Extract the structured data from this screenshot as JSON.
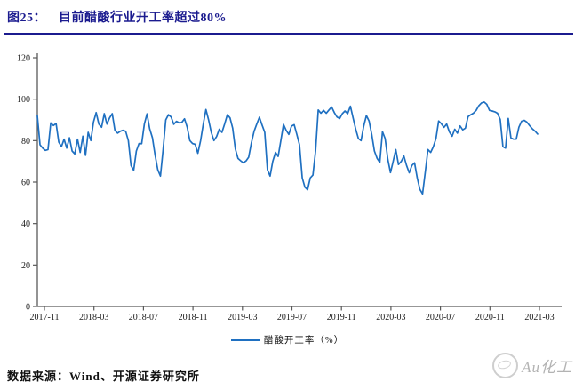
{
  "header": {
    "figure_label": "图25：",
    "title": "目前醋酸行业开工率超过80%"
  },
  "chart_data": {
    "type": "line",
    "title": "醋酸行业开工率",
    "xlabel": "",
    "ylabel": "",
    "ylim": [
      0,
      120
    ],
    "grid": false,
    "legend_position": "bottom",
    "x_tick_labels": [
      "2017-11",
      "2018-03",
      "2018-07",
      "2018-11",
      "2019-03",
      "2019-07",
      "2019-11",
      "2020-03",
      "2020-07",
      "2020-11",
      "2021-03"
    ],
    "y_ticks": [
      0,
      20,
      40,
      60,
      80,
      100,
      120
    ],
    "series": [
      {
        "name": "醋酸开工率（%）",
        "color": "#1F70C1",
        "values": [
          92,
          78,
          76.4,
          75.3,
          75.7,
          88.6,
          87.3,
          88.3,
          79.3,
          77.1,
          80.7,
          76.4,
          81.4,
          75,
          73.6,
          80.7,
          74.3,
          82.1,
          72.9,
          84,
          80,
          89,
          93.5,
          88,
          86.5,
          93,
          88,
          91,
          93,
          85,
          83.6,
          84.5,
          85,
          84.5,
          80,
          68,
          65.7,
          75,
          78.6,
          78.5,
          88,
          92.9,
          85.7,
          81.4,
          73,
          66,
          62.9,
          75.7,
          90,
          92.5,
          91.4,
          87.9,
          89.3,
          88.6,
          88.8,
          90.5,
          86.5,
          80,
          78.6,
          78.2,
          73.9,
          80,
          88,
          95,
          90,
          84,
          80,
          82,
          85.5,
          84,
          88,
          92.5,
          91,
          86,
          76,
          71.4,
          70.3,
          69.3,
          70.2,
          72,
          79,
          84.5,
          88,
          91.3,
          87.5,
          84,
          66,
          62.9,
          70,
          74.3,
          72.4,
          80,
          87.8,
          85,
          83,
          87,
          87.7,
          83,
          78,
          62,
          57.5,
          56.3,
          62,
          63.4,
          75,
          94.8,
          93.2,
          94.6,
          93.2,
          94.8,
          96.2,
          93.5,
          91.4,
          90.7,
          93,
          94.3,
          93,
          96.6,
          91,
          85.5,
          81,
          80,
          87,
          92.1,
          89.5,
          83,
          75,
          71.4,
          69.5,
          84.3,
          81,
          71,
          64.6,
          70,
          75.7,
          68.5,
          70,
          72.5,
          68,
          64.5,
          68,
          69.3,
          62,
          56.5,
          54.3,
          65,
          75.7,
          74.3,
          77,
          81,
          89.5,
          88.2,
          86.4,
          88,
          84.3,
          82.1,
          85.5,
          83.6,
          87.1,
          85.2,
          86,
          91.6,
          92.5,
          93.2,
          94.6,
          96.8,
          98.2,
          98.6,
          97.5,
          94.6,
          94.3,
          93.9,
          93.2,
          90.2,
          77.1,
          76.4,
          90.7,
          81.4,
          80.7,
          80.7,
          86.5,
          89.3,
          89.8,
          88.9,
          87.2,
          85.7,
          84.6,
          83.2
        ]
      }
    ]
  },
  "footer": {
    "source": "数据来源：Wind、开源证券研究所",
    "watermark": "Au化工"
  },
  "colors": {
    "accent_title": "#1b1b8f",
    "line": "#1F70C1",
    "axis": "#595959",
    "tick_text": "#1a1a1a",
    "watermark": "#b3b3b3"
  }
}
